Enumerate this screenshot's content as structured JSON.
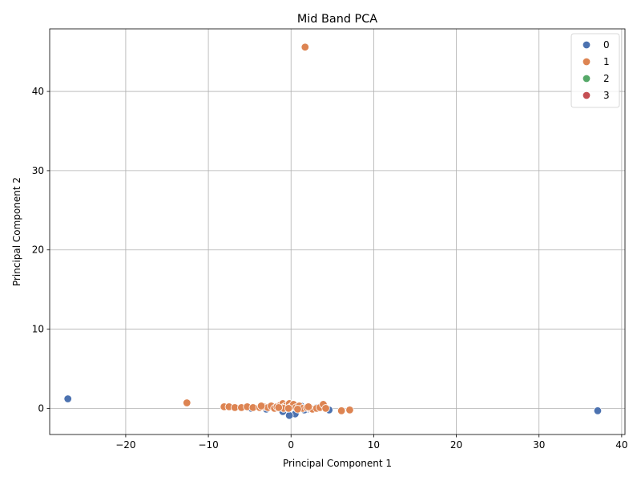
{
  "chart_data": {
    "type": "scatter",
    "title": "Mid Band PCA",
    "xlabel": "Principal Component 1",
    "ylabel": "Principal Component 2",
    "xlim": [
      -29.2,
      40.4
    ],
    "ylim": [
      -3.3,
      47.9
    ],
    "xticks": [
      -20,
      -10,
      0,
      10,
      20,
      30,
      40
    ],
    "yticks": [
      0,
      10,
      20,
      30,
      40
    ],
    "grid": true,
    "legend_position": "top-right",
    "series": [
      {
        "name": "0",
        "color": "#4c72b0",
        "points": [
          [
            -27.0,
            1.2
          ],
          [
            37.1,
            -0.3
          ],
          [
            4.6,
            -0.2
          ],
          [
            0.5,
            -0.7
          ],
          [
            -0.2,
            -0.9
          ],
          [
            -4.8,
            0.0
          ],
          [
            2.0,
            -0.1
          ],
          [
            -1.0,
            -0.4
          ],
          [
            1.2,
            0.3
          ],
          [
            3.1,
            0.1
          ],
          [
            -2.2,
            0.2
          ],
          [
            0.0,
            0.1
          ],
          [
            -3.0,
            -0.1
          ],
          [
            1.6,
            -0.2
          ]
        ]
      },
      {
        "name": "1",
        "color": "#dd8452",
        "points": [
          [
            1.7,
            45.6
          ],
          [
            -12.6,
            0.7
          ],
          [
            -8.1,
            0.2
          ],
          [
            -7.5,
            0.2
          ],
          [
            -6.8,
            0.1
          ],
          [
            -6.0,
            0.1
          ],
          [
            -5.3,
            0.2
          ],
          [
            -4.6,
            0.1
          ],
          [
            -3.8,
            0.1
          ],
          [
            -3.3,
            0.2
          ],
          [
            -2.8,
            0.1
          ],
          [
            -2.4,
            0.3
          ],
          [
            -2.0,
            0.0
          ],
          [
            -1.7,
            0.2
          ],
          [
            -1.3,
            0.4
          ],
          [
            -1.0,
            0.6
          ],
          [
            -0.8,
            0.2
          ],
          [
            -0.5,
            0.4
          ],
          [
            -0.2,
            0.6
          ],
          [
            0.0,
            0.2
          ],
          [
            0.3,
            0.5
          ],
          [
            0.6,
            0.1
          ],
          [
            1.0,
            0.3
          ],
          [
            1.4,
            0.0
          ],
          [
            1.9,
            0.1
          ],
          [
            2.3,
            0.0
          ],
          [
            2.6,
            -0.1
          ],
          [
            3.1,
            0.0
          ],
          [
            3.5,
            0.1
          ],
          [
            3.9,
            0.5
          ],
          [
            4.2,
            0.0
          ],
          [
            6.1,
            -0.3
          ],
          [
            7.1,
            -0.2
          ],
          [
            -0.9,
            0.0
          ],
          [
            0.8,
            -0.1
          ],
          [
            -1.5,
            0.1
          ],
          [
            -3.6,
            0.3
          ],
          [
            2.1,
            0.2
          ],
          [
            -0.3,
            0.0
          ]
        ]
      },
      {
        "name": "2",
        "color": "#55a868",
        "points": []
      },
      {
        "name": "3",
        "color": "#c44e52",
        "points": []
      }
    ]
  }
}
